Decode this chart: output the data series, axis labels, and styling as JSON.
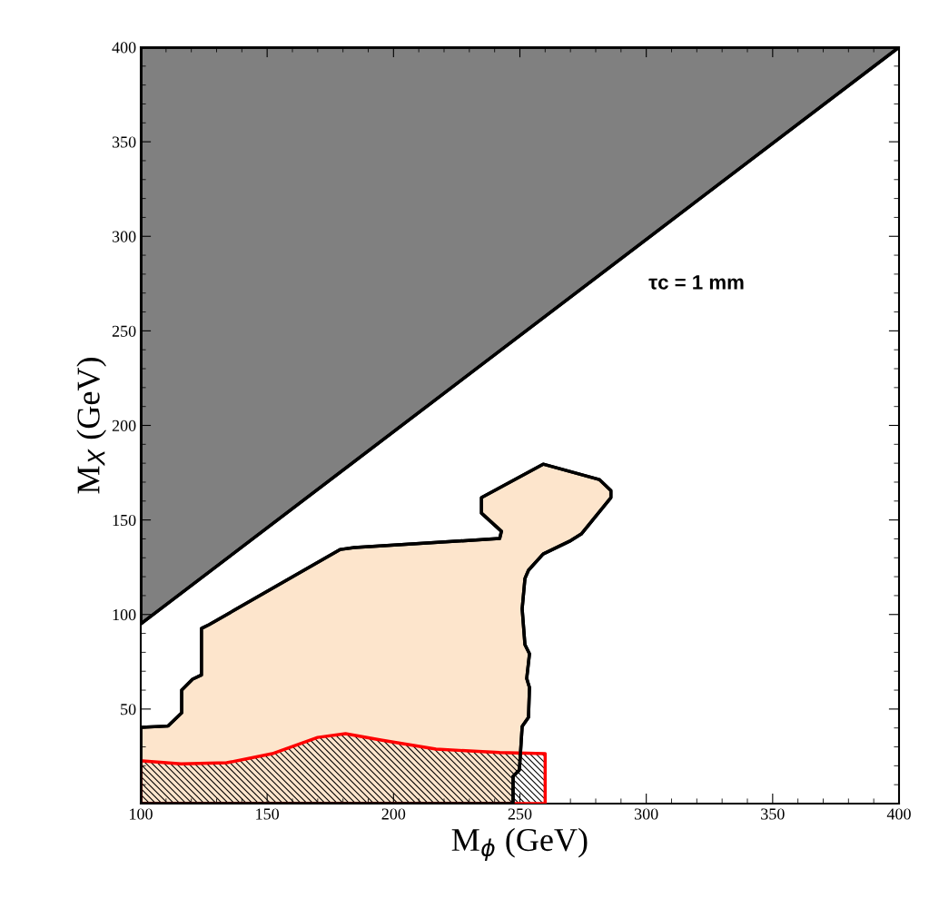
{
  "chart_data": {
    "type": "area",
    "xlabel": "M$_{ϕ}$ (GeV)",
    "ylabel": "M$_{X}$ (GeV)",
    "xlim": [
      100,
      400
    ],
    "ylim": [
      0,
      400
    ],
    "xticks": [
      100,
      150,
      200,
      250,
      300,
      350,
      400
    ],
    "yticks": [
      {
        "value": 0,
        "label": null
      },
      50,
      100,
      150,
      200,
      250,
      300,
      350,
      400
    ],
    "grid": false,
    "legend": false,
    "annotations": [
      "τc = 1 mm"
    ],
    "series": [
      {
        "color": "#808080",
        "x": [
          100,
          400,
          100
        ],
        "values": [
          95,
          400,
          400
        ]
      },
      {
        "color": "#fde5cc",
        "x": [
          100,
          110.8,
          116.2,
          116.2,
          120.5,
          124,
          124,
          127,
          179,
          184.5,
          242,
          242.7,
          234.8,
          234.8,
          259.2,
          281.4,
          286,
          286,
          274.3,
          269.6,
          259.2,
          253.4,
          252,
          250.9,
          252,
          253.8,
          252.7,
          253.8,
          253.4,
          250.9,
          249.8,
          247.3,
          247.3,
          100
        ],
        "values": [
          40.3,
          41,
          48,
          60,
          65.8,
          68,
          92.6,
          94.6,
          134.4,
          135.4,
          140.2,
          144,
          153.6,
          161.8,
          179.5,
          171.4,
          165.6,
          161.8,
          142.6,
          138.7,
          132,
          123.4,
          119,
          103,
          84,
          79.2,
          66.2,
          61.4,
          45.6,
          40.8,
          17.8,
          14.4,
          0,
          0
        ]
      },
      {
        "color": "#ff0000",
        "x": [
          100.7,
          116,
          134,
          152,
          170,
          181,
          195,
          216.8,
          242,
          260,
          260,
          100,
          100
        ],
        "values": [
          22.6,
          21,
          21.6,
          26.4,
          35,
          37,
          33.6,
          28.8,
          27,
          26.4,
          0,
          0,
          22.6
        ]
      }
    ]
  }
}
